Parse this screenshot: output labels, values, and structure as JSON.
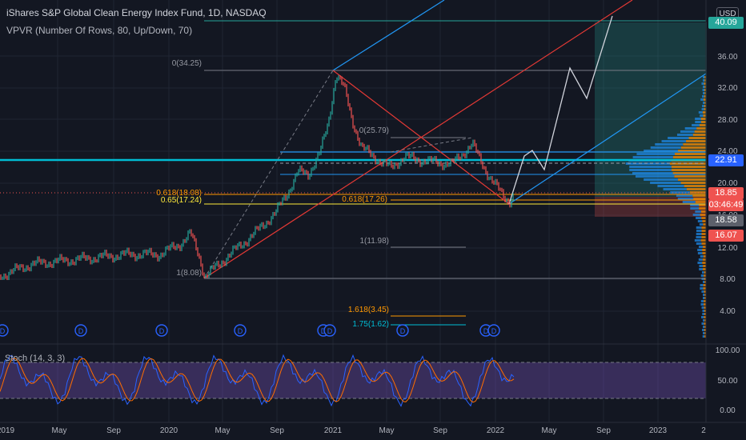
{
  "header": {
    "title": "iShares S&P Global Clean Energy Index Fund, 1D, NASDAQ",
    "indicator": "VPVR (Number Of Rows, 80, Up/Down, 70)",
    "currency": "USD"
  },
  "price_axis": {
    "labels": [
      "36.00",
      "32.00",
      "28.00",
      "24.00",
      "20.00",
      "16.00",
      "12.00",
      "8.00",
      "4.00"
    ]
  },
  "price_tags": {
    "target": "40.09",
    "level_a": "22.91",
    "last": "18.85",
    "countdown": "03:46:49",
    "level_b": "18.58",
    "stop": "16.07"
  },
  "fib_labels": {
    "top": "0(34.25)",
    "low": "1(8.08)",
    "golden_left": "0.618(18.08)",
    "ratio_left": "0.65(17.24)",
    "mid": "0(25.79)",
    "golden_right": "0.618(17.26)",
    "one": "1(11.98)",
    "ext1": "1.618(3.45)",
    "ext2": "1.75(1.62)"
  },
  "dividend_marker": "D",
  "stoch": {
    "label": "Stoch (14, 3, 3)",
    "axis": [
      "100.00",
      "50.00",
      "0.00"
    ]
  },
  "time_axis": [
    "2019",
    "May",
    "Sep",
    "2020",
    "May",
    "Sep",
    "2021",
    "May",
    "Sep",
    "2022",
    "May",
    "Sep",
    "2023",
    "2"
  ],
  "colors": {
    "background": "#131722",
    "target_zone": "#26a69a",
    "stop_zone": "#ef5350",
    "stoch_band": "#7e57c2",
    "cyan_line": "#00bcd4",
    "fib_orange": "#ff9800",
    "fib_yellow": "#ffeb3b",
    "trend_red": "#e53935",
    "channel_blue": "#2196f3",
    "volume_blue": "#1e88e5",
    "volume_orange": "#fb8c00"
  }
}
